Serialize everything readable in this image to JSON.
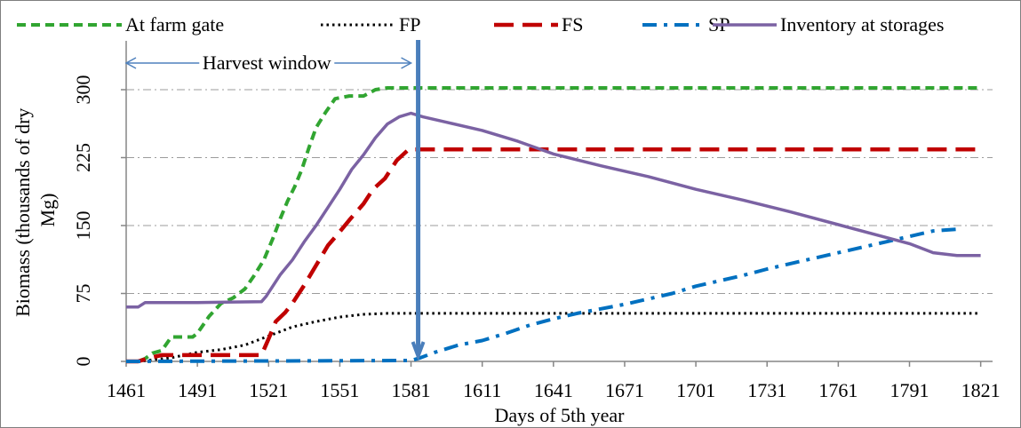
{
  "chart_data": {
    "type": "line",
    "xlabel": "Days of 5th year",
    "ylabel": "Biomass  (thousands of dry Mg)",
    "xlim": [
      1461,
      1826
    ],
    "ylim": [
      0,
      300
    ],
    "x_ticks": [
      1461,
      1491,
      1521,
      1551,
      1581,
      1611,
      1641,
      1671,
      1701,
      1731,
      1761,
      1791,
      1821
    ],
    "y_ticks": [
      0,
      75,
      150,
      225,
      300
    ],
    "grid": "horizontal dash-dot",
    "legend_position": "top",
    "annotation": {
      "text": "Harvest window",
      "from_x": 1461,
      "to_x": 1581,
      "marker_x": 1584
    },
    "series": [
      {
        "name": "At farm gate",
        "color": "#31a531",
        "style": "dashed",
        "points": [
          [
            1461,
            0
          ],
          [
            1466,
            0
          ],
          [
            1469,
            3
          ],
          [
            1472,
            9
          ],
          [
            1476,
            12
          ],
          [
            1480,
            27
          ],
          [
            1484,
            27
          ],
          [
            1489,
            27
          ],
          [
            1491,
            31
          ],
          [
            1496,
            50
          ],
          [
            1501,
            64
          ],
          [
            1506,
            70
          ],
          [
            1511,
            80
          ],
          [
            1515,
            95
          ],
          [
            1519,
            112
          ],
          [
            1523,
            137
          ],
          [
            1526,
            158
          ],
          [
            1529,
            177
          ],
          [
            1532,
            193
          ],
          [
            1535,
            212
          ],
          [
            1538,
            236
          ],
          [
            1541,
            258
          ],
          [
            1545,
            275
          ],
          [
            1549,
            290
          ],
          [
            1555,
            293
          ],
          [
            1561,
            293
          ],
          [
            1566,
            300
          ],
          [
            1571,
            302
          ],
          [
            1581,
            302
          ],
          [
            1821,
            302
          ]
        ]
      },
      {
        "name": "FP",
        "color": "#000000",
        "style": "dotted",
        "points": [
          [
            1461,
            0
          ],
          [
            1466,
            0
          ],
          [
            1480,
            4
          ],
          [
            1491,
            10
          ],
          [
            1501,
            13
          ],
          [
            1511,
            18
          ],
          [
            1521,
            28
          ],
          [
            1531,
            38
          ],
          [
            1541,
            44
          ],
          [
            1551,
            49
          ],
          [
            1561,
            52
          ],
          [
            1571,
            53
          ],
          [
            1581,
            53
          ],
          [
            1821,
            53
          ]
        ]
      },
      {
        "name": "FS",
        "color": "#c00000",
        "style": "long-dash",
        "points": [
          [
            1461,
            0
          ],
          [
            1466,
            0
          ],
          [
            1471,
            4
          ],
          [
            1476,
            7
          ],
          [
            1481,
            7
          ],
          [
            1511,
            7
          ],
          [
            1518,
            7
          ],
          [
            1521,
            25
          ],
          [
            1524,
            44
          ],
          [
            1528,
            54
          ],
          [
            1531,
            64
          ],
          [
            1536,
            84
          ],
          [
            1541,
            106
          ],
          [
            1546,
            128
          ],
          [
            1550,
            140
          ],
          [
            1555,
            156
          ],
          [
            1561,
            174
          ],
          [
            1565,
            190
          ],
          [
            1570,
            202
          ],
          [
            1575,
            222
          ],
          [
            1580,
            234
          ],
          [
            1821,
            234
          ]
        ]
      },
      {
        "name": "SP",
        "color": "#0070c0",
        "style": "dash-dot",
        "points": [
          [
            1461,
            0
          ],
          [
            1581,
            1
          ],
          [
            1585,
            4
          ],
          [
            1591,
            10
          ],
          [
            1601,
            18
          ],
          [
            1611,
            23
          ],
          [
            1621,
            31
          ],
          [
            1631,
            40
          ],
          [
            1641,
            47
          ],
          [
            1651,
            53
          ],
          [
            1661,
            58
          ],
          [
            1671,
            63
          ],
          [
            1681,
            69
          ],
          [
            1691,
            75
          ],
          [
            1701,
            83
          ],
          [
            1711,
            89
          ],
          [
            1721,
            95
          ],
          [
            1731,
            102
          ],
          [
            1741,
            108
          ],
          [
            1751,
            114
          ],
          [
            1761,
            120
          ],
          [
            1771,
            126
          ],
          [
            1781,
            132
          ],
          [
            1791,
            138
          ],
          [
            1801,
            144
          ],
          [
            1811,
            146
          ]
        ]
      },
      {
        "name": "Inventory at storages",
        "color": "#7b62a3",
        "style": "solid",
        "points": [
          [
            1461,
            60
          ],
          [
            1466,
            60
          ],
          [
            1469,
            65
          ],
          [
            1491,
            65
          ],
          [
            1518,
            66
          ],
          [
            1520,
            72
          ],
          [
            1526,
            96
          ],
          [
            1531,
            112
          ],
          [
            1536,
            132
          ],
          [
            1541,
            150
          ],
          [
            1546,
            170
          ],
          [
            1551,
            190
          ],
          [
            1556,
            212
          ],
          [
            1561,
            228
          ],
          [
            1566,
            247
          ],
          [
            1571,
            262
          ],
          [
            1576,
            270
          ],
          [
            1581,
            274
          ],
          [
            1586,
            270
          ],
          [
            1596,
            264
          ],
          [
            1611,
            255
          ],
          [
            1626,
            243
          ],
          [
            1641,
            229
          ],
          [
            1661,
            216
          ],
          [
            1681,
            204
          ],
          [
            1701,
            190
          ],
          [
            1721,
            178
          ],
          [
            1741,
            165
          ],
          [
            1761,
            151
          ],
          [
            1781,
            137
          ],
          [
            1791,
            130
          ],
          [
            1801,
            120
          ],
          [
            1811,
            117
          ],
          [
            1821,
            117
          ]
        ]
      }
    ]
  }
}
